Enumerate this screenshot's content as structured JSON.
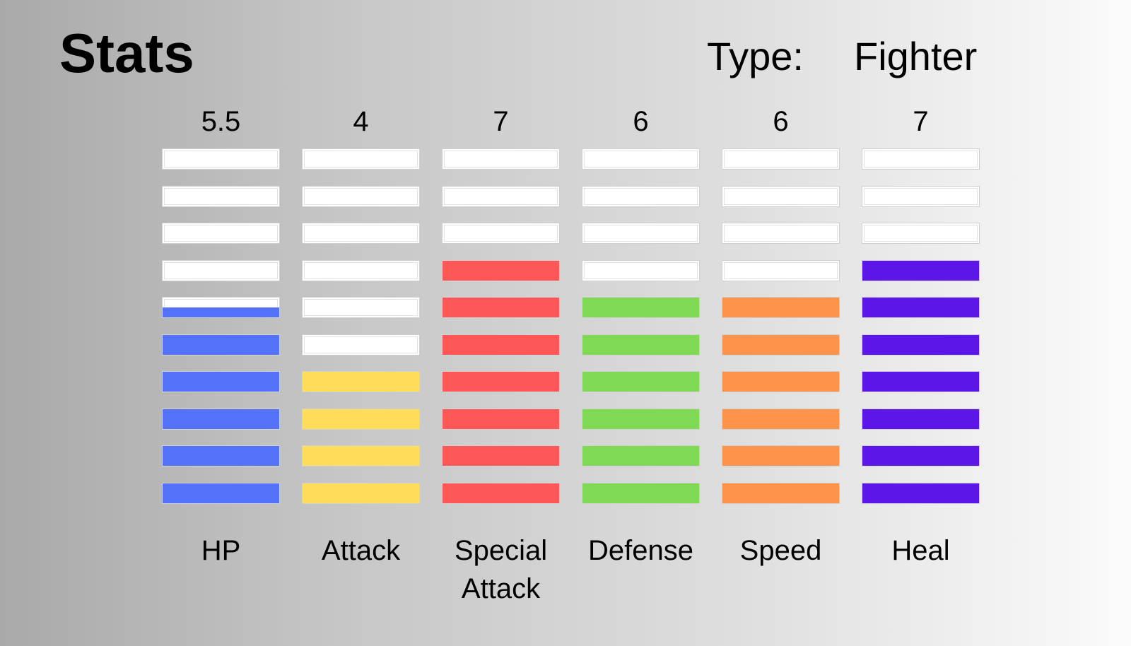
{
  "header": {
    "title": "Stats",
    "type_label": "Type:",
    "type_value": "Fighter"
  },
  "chart_data": {
    "type": "bar",
    "max_segments": 10,
    "categories": [
      "HP",
      "Attack",
      "Special\nAttack",
      "Defense",
      "Speed",
      "Heal"
    ],
    "values": [
      5.5,
      4,
      7,
      6,
      6,
      7
    ],
    "value_labels": [
      "5.5",
      "4",
      "7",
      "6",
      "6",
      "7"
    ],
    "colors": [
      "#5472f7",
      "#fedd5b",
      "#fe5757",
      "#7fd955",
      "#fe934c",
      "#5c17e8"
    ]
  }
}
